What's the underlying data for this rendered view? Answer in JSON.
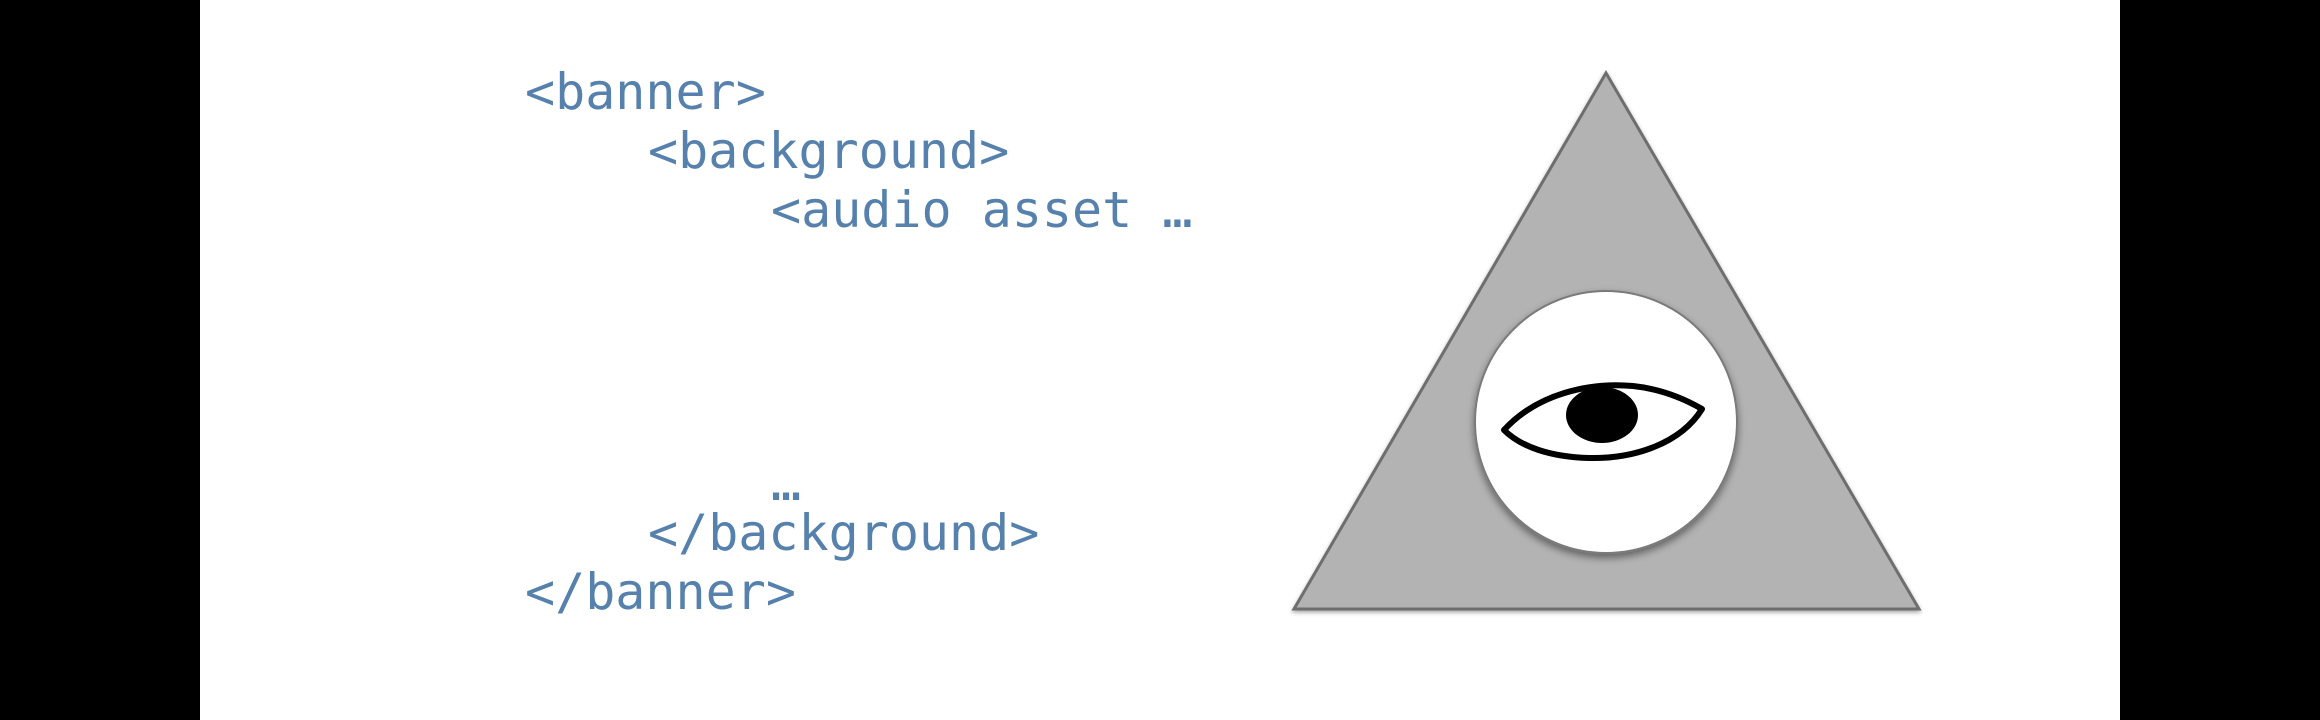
{
  "code": {
    "lines": [
      "<banner>",
      "<background>",
      "<audio asset …",
      "…",
      "</background>",
      "</banner>"
    ]
  },
  "colors": {
    "code_text": "#5681ad",
    "triangle_fill": "#b3b3b3",
    "triangle_edge": "#6e6e6e",
    "circle_fill": "#ffffff",
    "eye_stroke": "#000000"
  },
  "icons": {
    "illustration": "eye-in-triangle-icon"
  }
}
